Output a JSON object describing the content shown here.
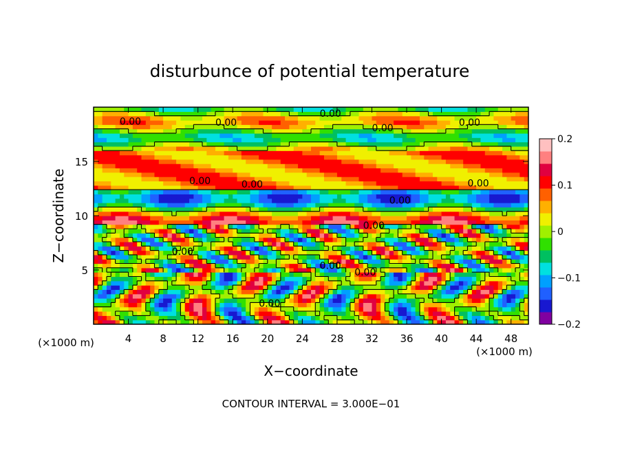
{
  "chart_data": {
    "type": "heatmap",
    "title": "disturbunce of potential temperature",
    "xlabel": "X−coordinate",
    "ylabel": "Z−coordinate",
    "x_unit": "(×1000 m)",
    "z_unit": "(×1000 m)",
    "xlim": [
      0,
      50
    ],
    "ylim": [
      0,
      20
    ],
    "x_ticks": [
      4,
      8,
      12,
      16,
      20,
      24,
      28,
      32,
      36,
      40,
      44,
      48
    ],
    "y_ticks": [
      5,
      10,
      15
    ],
    "colorbar": {
      "range": [
        -0.2,
        0.2
      ],
      "ticks": [
        {
          "value": 0.2,
          "label": "0.2"
        },
        {
          "value": 0.1,
          "label": "0.1"
        },
        {
          "value": 0.0,
          "label": "0"
        },
        {
          "value": -0.1,
          "label": "−0.1"
        },
        {
          "value": -0.2,
          "label": "−0.2"
        }
      ],
      "colors": [
        "#8000a0",
        "#1818d0",
        "#2060ff",
        "#00a0ff",
        "#00e0e0",
        "#00c060",
        "#30e000",
        "#a0f000",
        "#f0f000",
        "#ffb000",
        "#ff6000",
        "#ff0000",
        "#e00040",
        "#ff8080",
        "#ffc0c0"
      ]
    },
    "contour_label": "0.00",
    "contour_interval_text": "CONTOUR INTERVAL = 3.000E−01"
  }
}
